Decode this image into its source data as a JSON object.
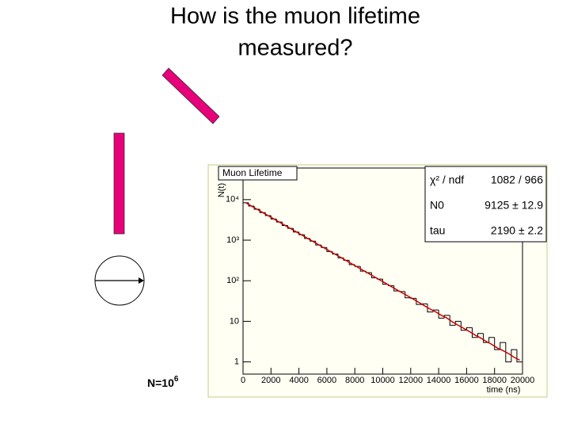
{
  "slide": {
    "title_lines": [
      "How is the muon lifetime",
      "measured?"
    ],
    "note": {
      "text": "N=10",
      "superscript": "6"
    }
  },
  "chart_data": {
    "type": "histogram",
    "title": "Muon Lifetime",
    "x_label": "time (ns)",
    "y_label": "N(t)",
    "bins": [
      0,
      400,
      800,
      1200,
      1600,
      2000,
      2400,
      2800,
      3200,
      3600,
      4000,
      4400,
      4800,
      5200,
      5600,
      6000,
      6400,
      6800,
      7200,
      7600,
      8000,
      8400,
      8800,
      9200,
      9600,
      10000,
      10400,
      10800,
      11200,
      11600,
      12000,
      12400,
      12800,
      13200,
      13600,
      14000,
      14400,
      14800,
      15200,
      15600,
      16000,
      16400,
      16800,
      17200,
      17600,
      18000,
      18400,
      18800,
      19200,
      19600,
      20000
    ],
    "values": [
      8350,
      6910,
      5800,
      4790,
      4040,
      3320,
      2800,
      2300,
      1950,
      1590,
      1360,
      1100,
      945,
      760,
      660,
      525,
      455,
      365,
      320,
      250,
      225,
      172,
      158,
      118,
      110,
      82,
      76,
      56,
      54,
      38,
      37,
      26,
      27,
      17,
      19,
      12,
      14,
      8,
      10,
      6,
      7,
      4,
      5,
      3,
      4,
      2,
      3,
      1,
      2,
      1
    ],
    "color": "#000000",
    "fit": {
      "color": "#cc0000",
      "values": [
        8329,
        6939,
        5781,
        4816,
        4012,
        3343,
        2785,
        2320,
        1933,
        1610,
        1341,
        1117,
        931,
        776,
        646,
        538,
        448,
        374,
        311,
        259,
        216,
        180,
        150,
        125,
        104,
        87,
        72,
        60,
        50,
        42,
        35,
        29,
        24,
        20,
        17,
        14,
        12,
        9.6,
        8.0,
        6.7,
        5.6,
        4.6,
        3.9,
        3.2,
        2.7,
        2.2,
        1.9,
        1.6,
        1.3,
        1.1
      ]
    },
    "xlim": [
      0,
      20000
    ],
    "xticks": [
      0,
      2000,
      4000,
      6000,
      8000,
      10000,
      12000,
      14000,
      16000,
      18000,
      20000
    ],
    "ylim": [
      0.5,
      60000
    ],
    "log_y": true,
    "yticks": [
      1,
      10,
      {
        "value": 100,
        "label": "10²"
      },
      {
        "value": 1000,
        "label": "10³"
      },
      {
        "value": 10000,
        "label": "10⁴"
      }
    ],
    "stats": [
      {
        "label": "χ² / ndf",
        "value": "1082 / 966"
      },
      {
        "label": "N0",
        "value": "9125 ± 12.9"
      },
      {
        "label": "tau",
        "value": "2190 ± 2.2"
      }
    ]
  }
}
